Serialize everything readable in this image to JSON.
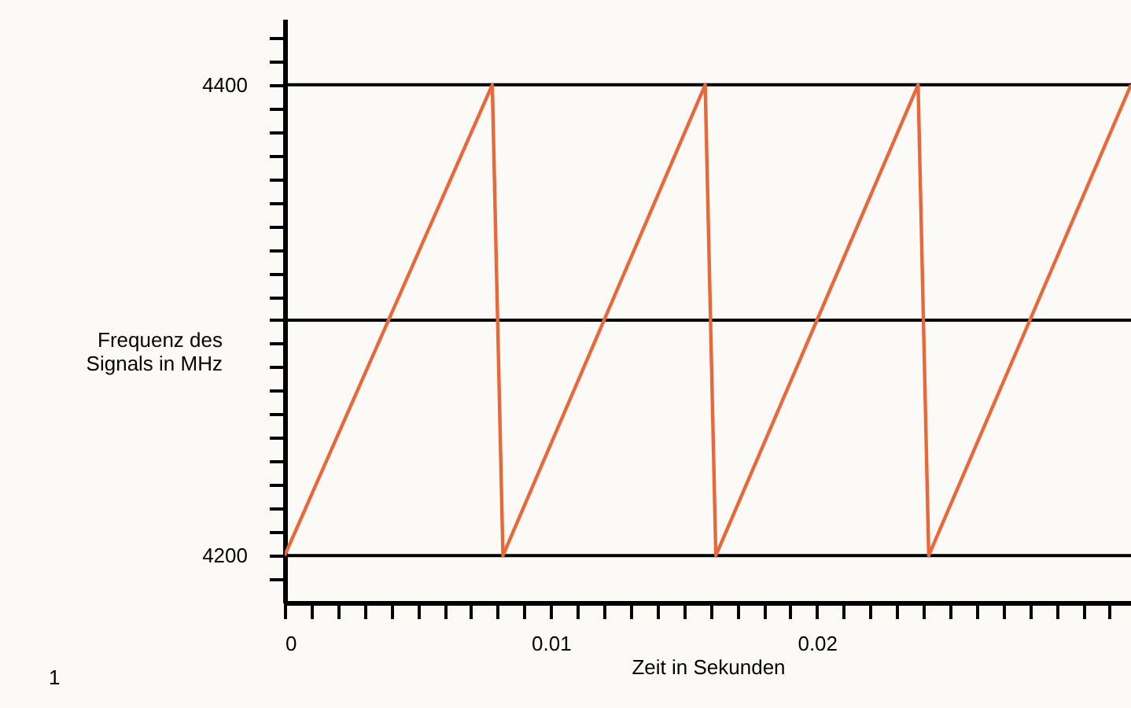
{
  "chart_data": {
    "type": "line",
    "xlabel": "Zeit in Sekunden",
    "ylabel": "Frequenz des Signals in MHz",
    "x": [
      0,
      0.0078,
      0.0082,
      0.0158,
      0.0162,
      0.0238,
      0.0242,
      0.0318
    ],
    "series": [
      {
        "color": "#e8683a",
        "values": [
          4200,
          4400,
          4200,
          4400,
          4200,
          4400,
          4200,
          4400
        ]
      }
    ],
    "xlim": [
      0,
      0.0318
    ],
    "ylim": [
      4180,
      4428
    ],
    "xticks": [
      0,
      {
        "value": 0.001,
        "label": null
      },
      {
        "value": 0.002,
        "label": null
      },
      {
        "value": 0.003,
        "label": null
      },
      {
        "value": 0.004,
        "label": null
      },
      {
        "value": 0.005,
        "label": null
      },
      {
        "value": 0.006,
        "label": null
      },
      {
        "value": 0.007,
        "label": null
      },
      {
        "value": 0.008,
        "label": null
      },
      {
        "value": 0.009,
        "label": null
      },
      0.01,
      {
        "value": 0.011,
        "label": null
      },
      {
        "value": 0.012,
        "label": null
      },
      {
        "value": 0.013,
        "label": null
      },
      {
        "value": 0.014,
        "label": null
      },
      {
        "value": 0.015,
        "label": null
      },
      {
        "value": 0.016,
        "label": null
      },
      {
        "value": 0.017,
        "label": null
      },
      {
        "value": 0.018,
        "label": null
      },
      {
        "value": 0.019,
        "label": null
      },
      0.02,
      {
        "value": 0.021,
        "label": null
      },
      {
        "value": 0.022,
        "label": null
      },
      {
        "value": 0.023,
        "label": null
      },
      {
        "value": 0.024,
        "label": null
      },
      {
        "value": 0.025,
        "label": null
      },
      {
        "value": 0.026,
        "label": null
      },
      {
        "value": 0.027,
        "label": null
      },
      {
        "value": 0.028,
        "label": null
      },
      {
        "value": 0.029,
        "label": null
      },
      {
        "value": 0.03,
        "label": null
      },
      {
        "value": 0.031,
        "label": null
      }
    ],
    "yticks": [
      {
        "value": 4190,
        "label": null
      },
      4200,
      {
        "value": 4210,
        "label": null
      },
      {
        "value": 4220,
        "label": null
      },
      {
        "value": 4230,
        "label": null
      },
      {
        "value": 4240,
        "label": null
      },
      {
        "value": 4250,
        "label": null
      },
      {
        "value": 4260,
        "label": null
      },
      {
        "value": 4270,
        "label": null
      },
      {
        "value": 4280,
        "label": null
      },
      {
        "value": 4290,
        "label": null
      },
      {
        "value": 4300,
        "label": null
      },
      {
        "value": 4310,
        "label": null
      },
      {
        "value": 4320,
        "label": null
      },
      {
        "value": 4330,
        "label": null
      },
      {
        "value": 4340,
        "label": null
      },
      {
        "value": 4350,
        "label": null
      },
      {
        "value": 4360,
        "label": null
      },
      {
        "value": 4370,
        "label": null
      },
      {
        "value": 4380,
        "label": null
      },
      {
        "value": 4390,
        "label": null
      },
      4400,
      {
        "value": 4410,
        "label": null
      },
      {
        "value": 4420,
        "label": null
      }
    ],
    "ref_lines": [
      {
        "axis": "y",
        "value": 4200,
        "label": null
      },
      {
        "axis": "y",
        "value": 4300,
        "label": null
      },
      {
        "axis": "y",
        "value": 4400,
        "label": null
      }
    ],
    "annotations": [
      "1"
    ],
    "line_style": "solid",
    "marker": "none"
  }
}
